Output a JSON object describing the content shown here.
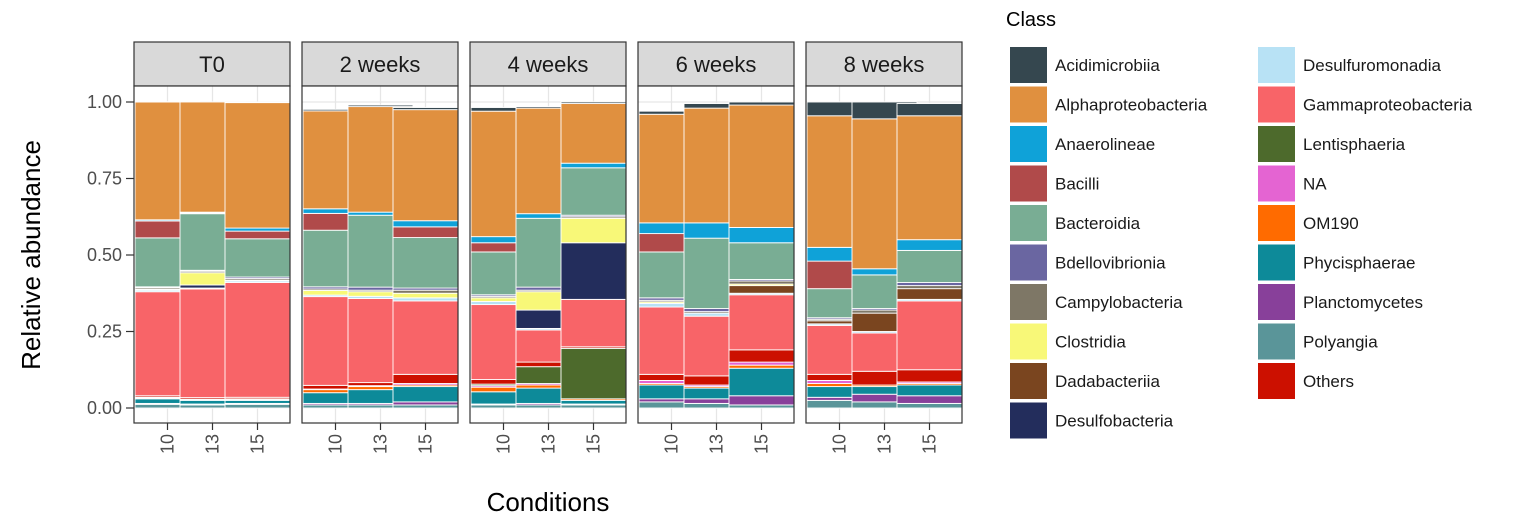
{
  "chart_data": {
    "type": "bar",
    "stacked": true,
    "xlabel": "Conditions",
    "ylabel": "Relative abundance",
    "ylim": [
      0,
      1
    ],
    "yticks": [
      "0.00",
      "0.25",
      "0.50",
      "0.75",
      "1.00"
    ],
    "ytick_values": [
      0,
      0.25,
      0.5,
      0.75,
      1.0
    ],
    "panels": [
      "T0",
      "2 weeks",
      "4 weeks",
      "6 weeks",
      "8 weeks"
    ],
    "categories": [
      "10",
      "13",
      "15"
    ],
    "legend_title": "Class",
    "legend_placement": "right",
    "grid": true,
    "classes": [
      {
        "name": "Acidimicrobiia",
        "color": "#35474F"
      },
      {
        "name": "Alphaproteobacteria",
        "color": "#E0903F"
      },
      {
        "name": "Anaerolineae",
        "color": "#0FA2D8"
      },
      {
        "name": "Bacilli",
        "color": "#B04A4A"
      },
      {
        "name": "Bacteroidia",
        "color": "#79AD94"
      },
      {
        "name": "Bdellovibrionia",
        "color": "#6A66A1"
      },
      {
        "name": "Campylobacteria",
        "color": "#7E7766"
      },
      {
        "name": "Clostridia",
        "color": "#F8F878"
      },
      {
        "name": "Dadabacteriia",
        "color": "#7A451F"
      },
      {
        "name": "Desulfobacteria",
        "color": "#232D5C"
      },
      {
        "name": "Desulfuromonadia",
        "color": "#B8E2F5"
      },
      {
        "name": "Gammaproteobacteria",
        "color": "#F86468"
      },
      {
        "name": "Lentisphaeria",
        "color": "#4D6A2C"
      },
      {
        "name": "NA",
        "color": "#E464D2"
      },
      {
        "name": "OM190",
        "color": "#FF6B00"
      },
      {
        "name": "Phycisphaerae",
        "color": "#0D8A99"
      },
      {
        "name": "Planctomycetes",
        "color": "#88409A"
      },
      {
        "name": "Polyangia",
        "color": "#5A9599"
      },
      {
        "name": "Others",
        "color": "#CC1000"
      }
    ],
    "stack_order_bottom_to_top": [
      "Polyangia",
      "Planctomycetes",
      "Phycisphaerae",
      "OM190",
      "NA",
      "Lentisphaeria",
      "Others",
      "Gammaproteobacteria",
      "Desulfuromonadia",
      "Desulfobacteria",
      "Dadabacteriia",
      "Clostridia",
      "Campylobacteria",
      "Bdellovibrionia",
      "Bacteroidia",
      "Bacilli",
      "Anaerolineae",
      "Alphaproteobacteria",
      "Acidimicrobiia"
    ],
    "data": {
      "T0": {
        "10": {
          "Polyangia": 0.012,
          "Planctomycetes": 0.003,
          "Phycisphaerae": 0.015,
          "OM190": 0.003,
          "NA": 0.002,
          "Others": 0.005,
          "Gammaproteobacteria": 0.34,
          "Desulfuromonadia": 0.005,
          "Clostridia": 0.003,
          "Campylobacteria": 0.005,
          "Bdellovibrionia": 0.003,
          "Bacteroidia": 0.16,
          "Bacilli": 0.055,
          "Anaerolineae": 0.004,
          "Alphaproteobacteria": 0.385,
          "Acidimicrobiia": 0.001
        },
        "13": {
          "Polyangia": 0.01,
          "Planctomycetes": 0.003,
          "Phycisphaerae": 0.012,
          "OM190": 0.002,
          "NA": 0.002,
          "Others": 0.005,
          "Gammaproteobacteria": 0.355,
          "Desulfuromonadia": 0.003,
          "Desulfobacteria": 0.01,
          "Clostridia": 0.04,
          "Campylobacteria": 0.005,
          "Bdellovibrionia": 0.003,
          "Bacteroidia": 0.185,
          "Bacilli": 0.003,
          "Anaerolineae": 0.002,
          "Alphaproteobacteria": 0.36
        },
        "15": {
          "Polyangia": 0.012,
          "Planctomycetes": 0.003,
          "Phycisphaerae": 0.01,
          "OM190": 0.003,
          "NA": 0.002,
          "Others": 0.005,
          "Gammaproteobacteria": 0.375,
          "Desulfuromonadia": 0.005,
          "Clostridia": 0.003,
          "Campylobacteria": 0.005,
          "Bdellovibrionia": 0.005,
          "Bacteroidia": 0.125,
          "Bacilli": 0.025,
          "Anaerolineae": 0.01,
          "Alphaproteobacteria": 0.41,
          "Acidimicrobiia": 0.002
        }
      },
      "2 weeks": {
        "10": {
          "Polyangia": 0.01,
          "Planctomycetes": 0.005,
          "Phycisphaerae": 0.035,
          "OM190": 0.01,
          "NA": 0.002,
          "Others": 0.012,
          "Gammaproteobacteria": 0.29,
          "Desulfuromonadia": 0.005,
          "Clostridia": 0.015,
          "Campylobacteria": 0.005,
          "Bdellovibrionia": 0.007,
          "Bacteroidia": 0.185,
          "Bacilli": 0.055,
          "Anaerolineae": 0.015,
          "Alphaproteobacteria": 0.32,
          "Acidimicrobiia": 0.005
        },
        "13": {
          "Polyangia": 0.01,
          "Planctomycetes": 0.005,
          "Phycisphaerae": 0.045,
          "OM190": 0.01,
          "NA": 0.003,
          "Others": 0.01,
          "Gammaproteobacteria": 0.275,
          "Desulfuromonadia": 0.007,
          "Clostridia": 0.015,
          "Campylobacteria": 0.005,
          "Bdellovibrionia": 0.01,
          "Bacteroidia": 0.235,
          "Anaerolineae": 0.01,
          "Alphaproteobacteria": 0.345,
          "Acidimicrobiia": 0.005
        },
        "15": {
          "Polyangia": 0.01,
          "Planctomycetes": 0.01,
          "Phycisphaerae": 0.05,
          "OM190": 0.005,
          "Others": 0.03,
          "NA": 0.005,
          "Gammaproteobacteria": 0.24,
          "Desulfuromonadia": 0.01,
          "Clostridia": 0.015,
          "Campylobacteria": 0.01,
          "Bdellovibrionia": 0.007,
          "Bacteroidia": 0.165,
          "Bacilli": 0.035,
          "Anaerolineae": 0.02,
          "Alphaproteobacteria": 0.363,
          "Acidimicrobiia": 0.007
        }
      },
      "4 weeks": {
        "10": {
          "Polyangia": 0.01,
          "Planctomycetes": 0.003,
          "Phycisphaerae": 0.04,
          "OM190": 0.015,
          "NA": 0.005,
          "Lentisphaeria": 0.005,
          "Others": 0.015,
          "Gammaproteobacteria": 0.245,
          "Desulfuromonadia": 0.01,
          "Clostridia": 0.012,
          "Campylobacteria": 0.005,
          "Bdellovibrionia": 0.005,
          "Bacteroidia": 0.14,
          "Bacilli": 0.03,
          "Anaerolineae": 0.02,
          "Alphaproteobacteria": 0.41,
          "Acidimicrobiia": 0.012
        },
        "13": {
          "Polyangia": 0.01,
          "Planctomycetes": 0.005,
          "Phycisphaerae": 0.05,
          "OM190": 0.01,
          "NA": 0.005,
          "Lentisphaeria": 0.055,
          "Others": 0.015,
          "Gammaproteobacteria": 0.105,
          "Desulfuromonadia": 0.005,
          "Desulfobacteria": 0.06,
          "Clostridia": 0.06,
          "Campylobacteria": 0.005,
          "Bdellovibrionia": 0.01,
          "Bacteroidia": 0.225,
          "Anaerolineae": 0.015,
          "Alphaproteobacteria": 0.345,
          "Acidimicrobiia": 0.005
        },
        "15": {
          "Polyangia": 0.01,
          "Planctomycetes": 0.003,
          "Phycisphaerae": 0.012,
          "OM190": 0.005,
          "Others": 0.005,
          "Lentisphaeria": 0.165,
          "Gammaproteobacteria": 0.155,
          "Desulfobacteria": 0.185,
          "Clostridia": 0.08,
          "Campylobacteria": 0.005,
          "Bdellovibrionia": 0.005,
          "Bacteroidia": 0.155,
          "Anaerolineae": 0.015,
          "Alphaproteobacteria": 0.195,
          "Acidimicrobiia": 0.005
        }
      },
      "6 weeks": {
        "10": {
          "Polyangia": 0.02,
          "Planctomycetes": 0.01,
          "Phycisphaerae": 0.045,
          "OM190": 0.005,
          "Others": 0.02,
          "NA": 0.01,
          "Gammaproteobacteria": 0.22,
          "Desulfuromonadia": 0.012,
          "Clostridia": 0.005,
          "Campylobacteria": 0.005,
          "Bdellovibrionia": 0.008,
          "Bacteroidia": 0.15,
          "Bacilli": 0.06,
          "Anaerolineae": 0.035,
          "Alphaproteobacteria": 0.355,
          "Acidimicrobiia": 0.01
        },
        "13": {
          "Polyangia": 0.015,
          "Planctomycetes": 0.015,
          "Phycisphaerae": 0.035,
          "OM190": 0.005,
          "Others": 0.03,
          "NA": 0.005,
          "Gammaproteobacteria": 0.195,
          "Desulfuromonadia": 0.01,
          "Campylobacteria": 0.005,
          "Bdellovibrionia": 0.01,
          "Bacteroidia": 0.23,
          "Anaerolineae": 0.05,
          "Alphaproteobacteria": 0.375,
          "Acidimicrobiia": 0.015
        },
        "15": {
          "Polyangia": 0.01,
          "Planctomycetes": 0.03,
          "Phycisphaerae": 0.09,
          "OM190": 0.01,
          "Others": 0.04,
          "NA": 0.01,
          "Gammaproteobacteria": 0.18,
          "Desulfuromonadia": 0.005,
          "Dadabacteriia": 0.025,
          "Clostridia": 0.005,
          "Campylobacteria": 0.01,
          "Bdellovibrionia": 0.005,
          "Bacteroidia": 0.12,
          "Anaerolineae": 0.05,
          "Alphaproteobacteria": 0.4,
          "Acidimicrobiia": 0.01
        }
      },
      "8 weeks": {
        "10": {
          "Polyangia": 0.025,
          "Planctomycetes": 0.01,
          "Phycisphaerae": 0.035,
          "OM190": 0.01,
          "Others": 0.02,
          "NA": 0.01,
          "Gammaproteobacteria": 0.16,
          "Desulfuromonadia": 0.005,
          "Dadabacteriia": 0.01,
          "Campylobacteria": 0.005,
          "Bdellovibrionia": 0.005,
          "Bacteroidia": 0.095,
          "Bacilli": 0.09,
          "Anaerolineae": 0.045,
          "Alphaproteobacteria": 0.43,
          "Acidimicrobiia": 0.045
        },
        "13": {
          "Polyangia": 0.02,
          "Planctomycetes": 0.025,
          "Phycisphaerae": 0.025,
          "OM190": 0.005,
          "Others": 0.045,
          "Gammaproteobacteria": 0.125,
          "Desulfuromonadia": 0.005,
          "Dadabacteriia": 0.06,
          "Campylobacteria": 0.01,
          "Bdellovibrionia": 0.005,
          "Bacteroidia": 0.11,
          "Anaerolineae": 0.02,
          "Alphaproteobacteria": 0.49,
          "Acidimicrobiia": 0.055
        },
        "15": {
          "Polyangia": 0.015,
          "Planctomycetes": 0.025,
          "Phycisphaerae": 0.035,
          "OM190": 0.005,
          "Others": 0.04,
          "NA": 0.005,
          "Gammaproteobacteria": 0.225,
          "Desulfuromonadia": 0.005,
          "Dadabacteriia": 0.035,
          "Campylobacteria": 0.01,
          "Bdellovibrionia": 0.01,
          "Bacteroidia": 0.105,
          "Anaerolineae": 0.035,
          "Alphaproteobacteria": 0.405,
          "Acidimicrobiia": 0.04
        }
      }
    }
  }
}
